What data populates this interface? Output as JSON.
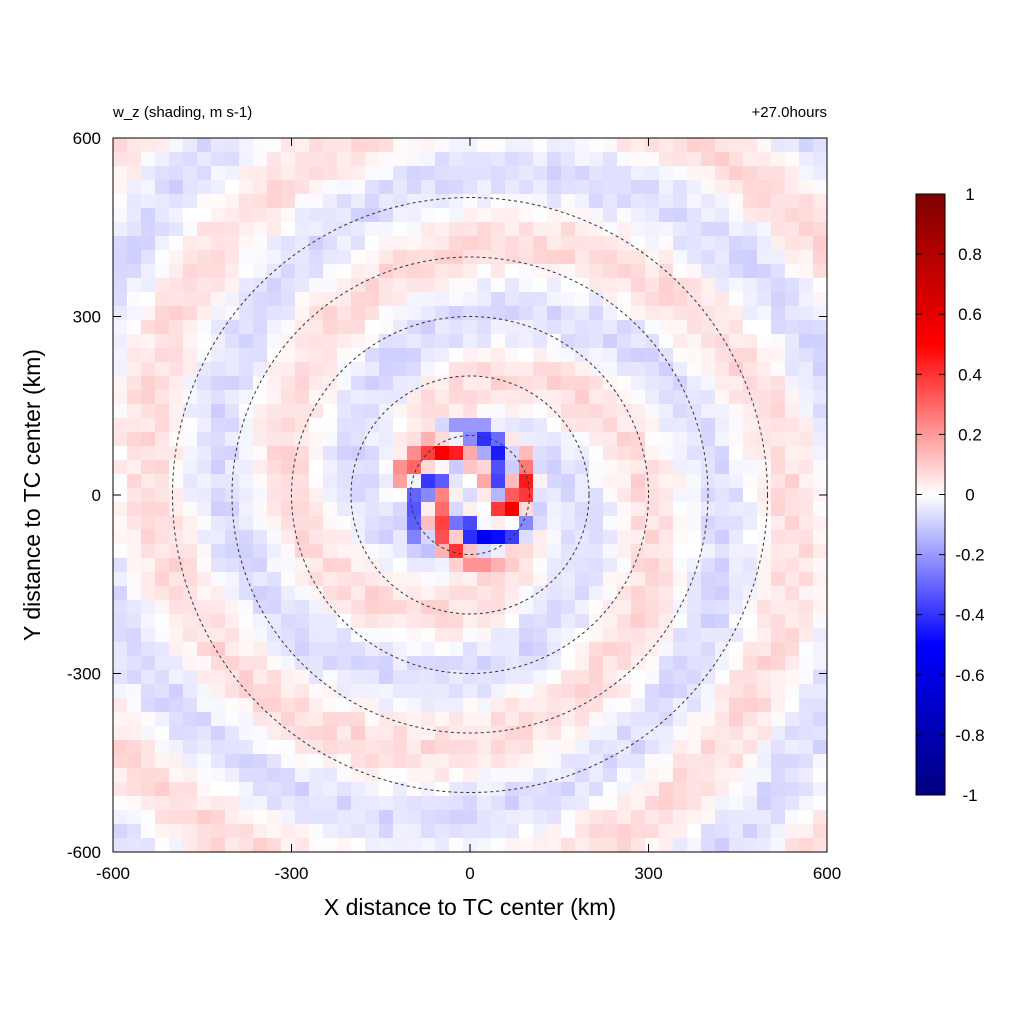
{
  "chart_data": {
    "type": "heatmap",
    "title_left": "w_z (shading, m s-1)",
    "title_right": "+27.0hours",
    "xlabel": "X distance to TC center (km)",
    "ylabel": "Y distance to TC center (km)",
    "xlim": [
      -600,
      600
    ],
    "ylim": [
      -600,
      600
    ],
    "xticks": [
      -600,
      -300,
      0,
      300,
      600
    ],
    "yticks": [
      -600,
      -300,
      0,
      300,
      600
    ],
    "xtick_labels": [
      "-600",
      "-300",
      "0",
      "300",
      "600"
    ],
    "ytick_labels": [
      "-600",
      "-300",
      "0",
      "300",
      "600"
    ],
    "grid": false,
    "field": "w_z",
    "units": "m s-1",
    "range_circles_km": [
      100,
      200,
      300,
      400,
      500
    ],
    "circle_style": "dashed",
    "circle_color": "#333333",
    "colorbar": {
      "placement": "right",
      "min": -1,
      "max": 1,
      "ticks": [
        1,
        0.8,
        0.6,
        0.4,
        0.2,
        0,
        -0.2,
        -0.4,
        -0.6,
        -0.8,
        -1
      ],
      "tick_labels": [
        "1",
        "0.8",
        "0.6",
        "0.4",
        "0.2",
        "0",
        "-0.2",
        "-0.4",
        "-0.6",
        "-0.8",
        "-1"
      ],
      "colors": [
        "#00007f",
        "#0000ff",
        "#ffffff",
        "#ff0000",
        "#7f0000"
      ]
    }
  }
}
